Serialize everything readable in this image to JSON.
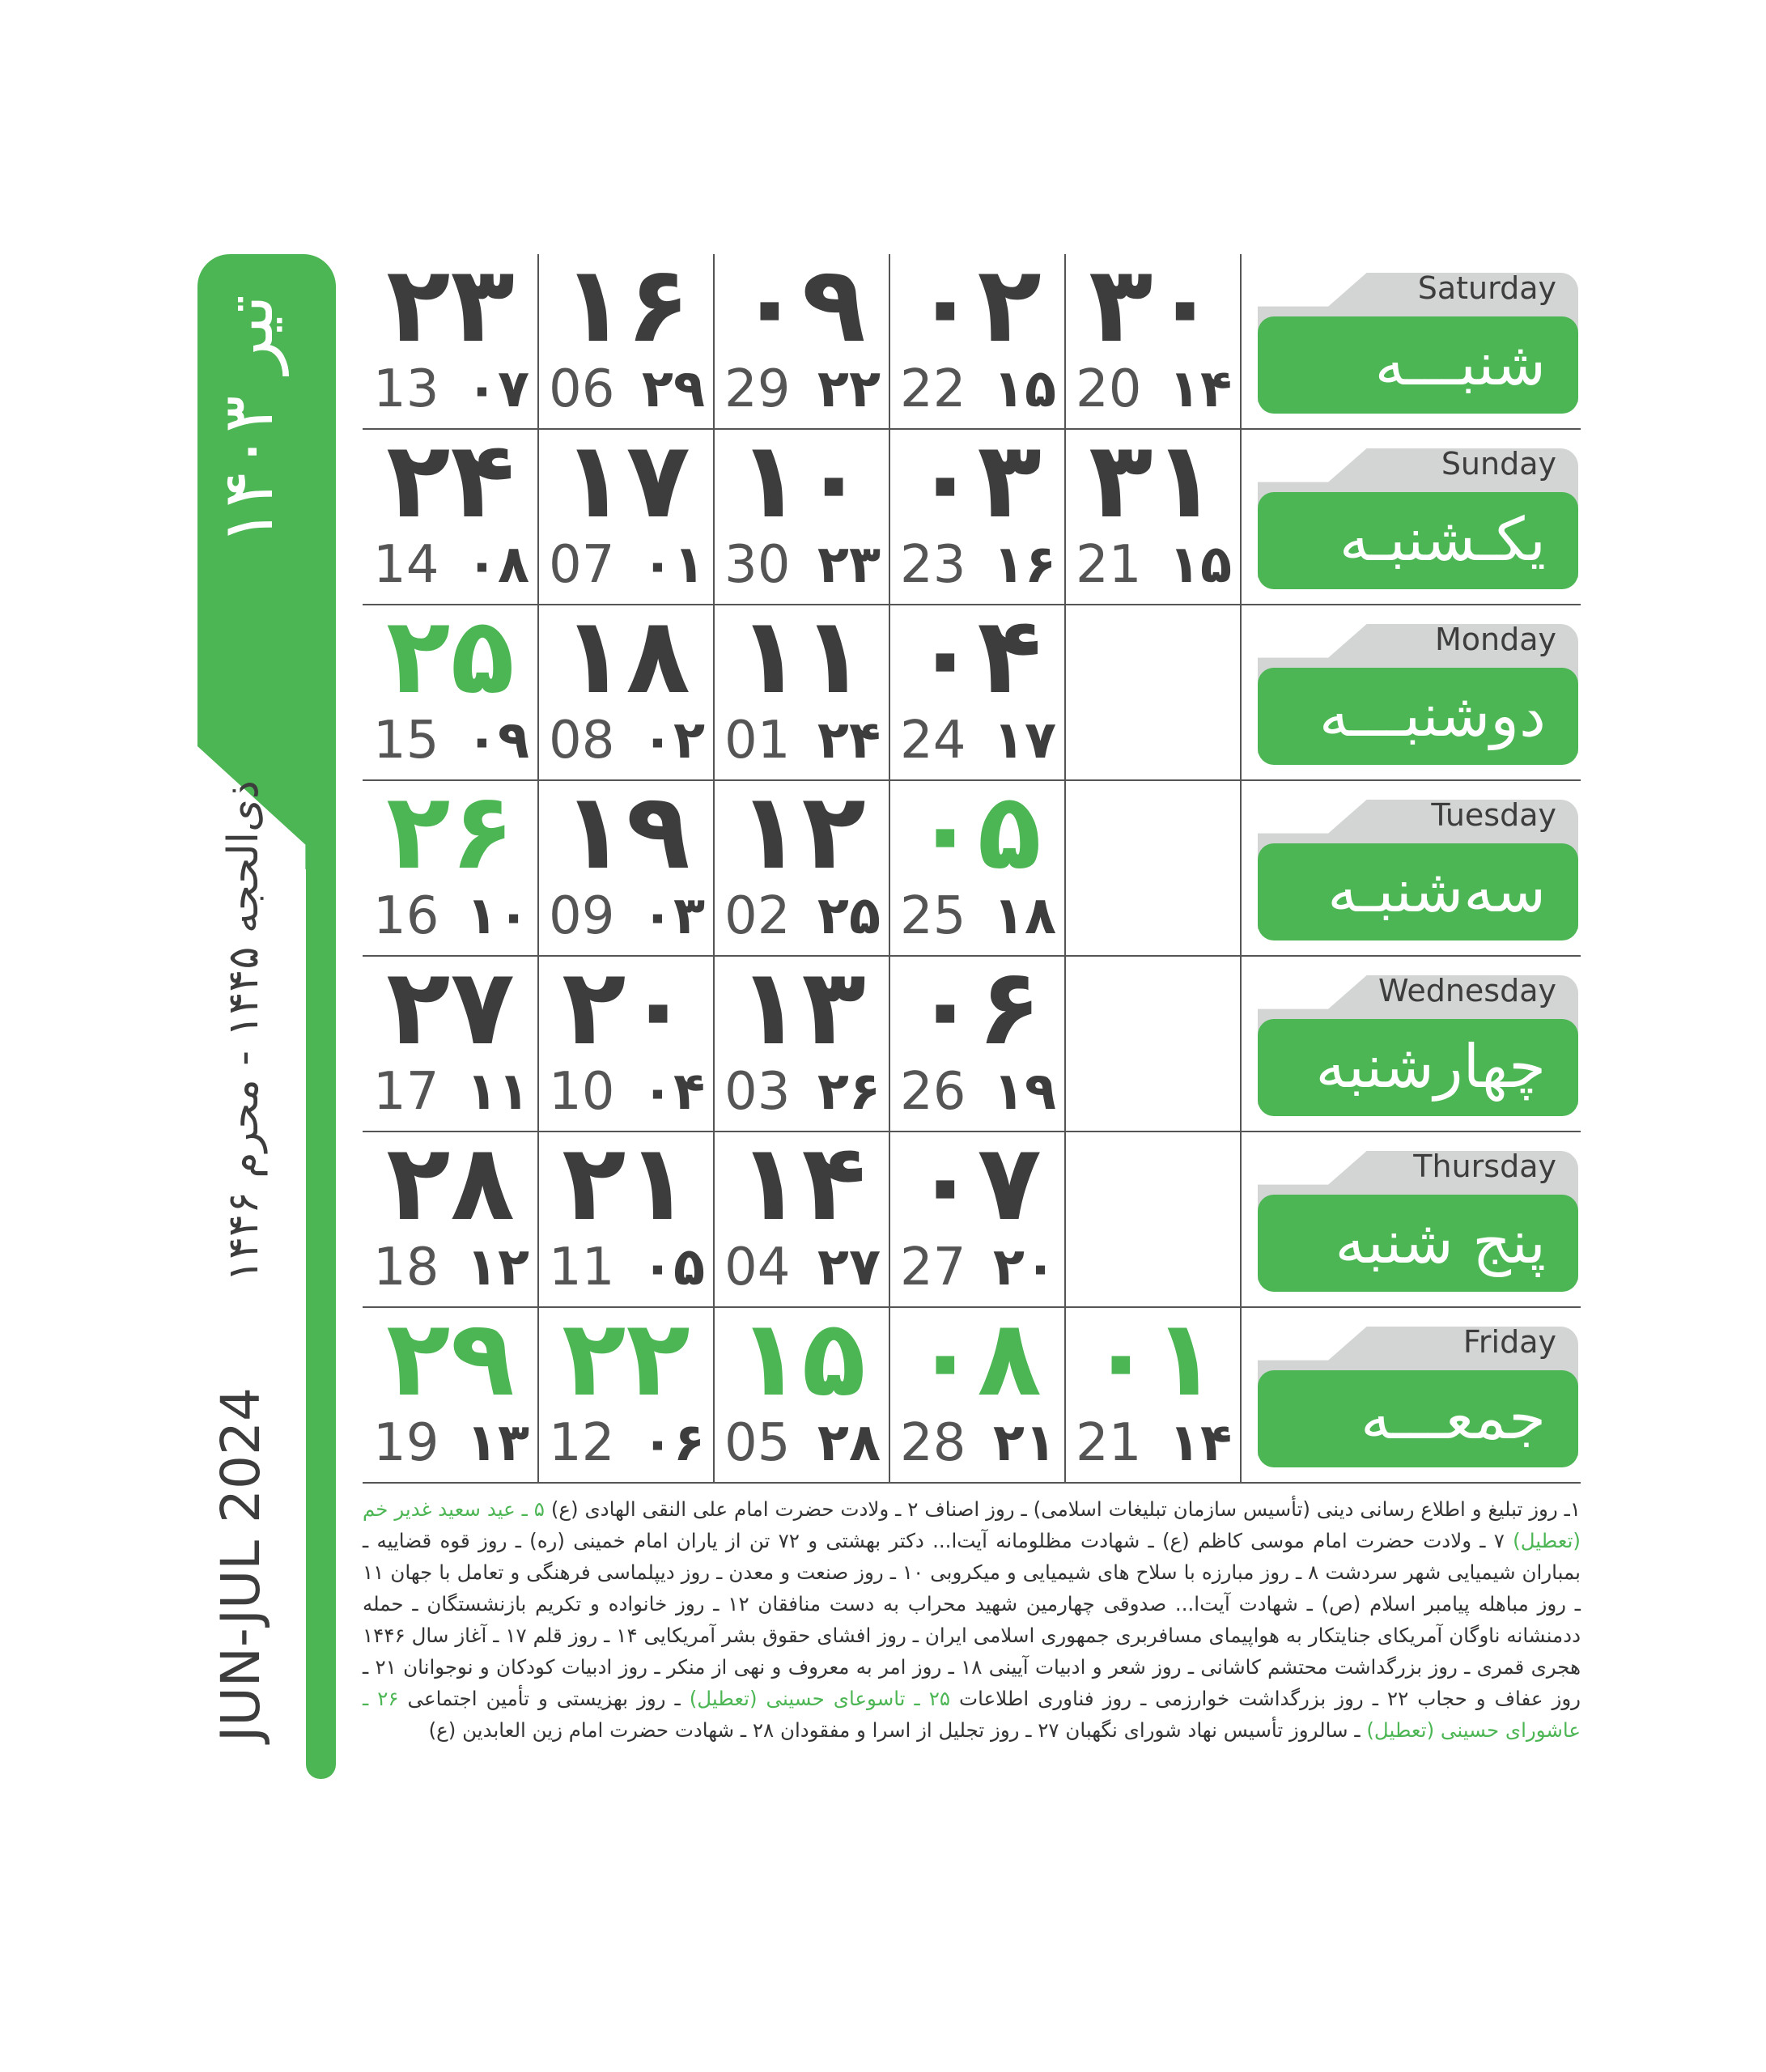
{
  "sidebar": {
    "month_title": "تیر ۱۴۰۳",
    "hijri_range": "ذی‌الحجه ۱۴۴۵ - محرم ۱۴۴۶",
    "gregorian_range": "JUN-JUL 2024"
  },
  "colors": {
    "accent": "#4cb654",
    "text": "#3d3d3d",
    "tab_grey": "#d3d4d4"
  },
  "days": [
    {
      "en": "Saturday",
      "fa": "شنبـــه"
    },
    {
      "en": "Sunday",
      "fa": "یکـشنبـه"
    },
    {
      "en": "Monday",
      "fa": "دوشنبـــه"
    },
    {
      "en": "Tuesday",
      "fa": "سه‌شنبـه"
    },
    {
      "en": "Wednesday",
      "fa": "چهارشنبه"
    },
    {
      "en": "Thursday",
      "fa": "پنج شنبه"
    },
    {
      "en": "Friday",
      "fa": "جمعـــه"
    }
  ],
  "weeks": [
    [
      {
        "shamsi": "۳۰",
        "greg": "20",
        "hijri": "۱۴",
        "holiday": false
      },
      {
        "shamsi": "۳۱",
        "greg": "21",
        "hijri": "۱۵",
        "holiday": false
      },
      null,
      null,
      null,
      null,
      {
        "shamsi": "۰۱",
        "greg": "21",
        "hijri": "۱۴",
        "holiday": true
      }
    ],
    [
      {
        "shamsi": "۰۲",
        "greg": "22",
        "hijri": "۱۵",
        "holiday": false
      },
      {
        "shamsi": "۰۳",
        "greg": "23",
        "hijri": "۱۶",
        "holiday": false
      },
      {
        "shamsi": "۰۴",
        "greg": "24",
        "hijri": "۱۷",
        "holiday": false
      },
      {
        "shamsi": "۰۵",
        "greg": "25",
        "hijri": "۱۸",
        "holiday": true
      },
      {
        "shamsi": "۰۶",
        "greg": "26",
        "hijri": "۱۹",
        "holiday": false
      },
      {
        "shamsi": "۰۷",
        "greg": "27",
        "hijri": "۲۰",
        "holiday": false
      },
      {
        "shamsi": "۰۸",
        "greg": "28",
        "hijri": "۲۱",
        "holiday": true
      }
    ],
    [
      {
        "shamsi": "۰۹",
        "greg": "29",
        "hijri": "۲۲",
        "holiday": false
      },
      {
        "shamsi": "۱۰",
        "greg": "30",
        "hijri": "۲۳",
        "holiday": false
      },
      {
        "shamsi": "۱۱",
        "greg": "01",
        "hijri": "۲۴",
        "holiday": false
      },
      {
        "shamsi": "۱۲",
        "greg": "02",
        "hijri": "۲۵",
        "holiday": false
      },
      {
        "shamsi": "۱۳",
        "greg": "03",
        "hijri": "۲۶",
        "holiday": false
      },
      {
        "shamsi": "۱۴",
        "greg": "04",
        "hijri": "۲۷",
        "holiday": false
      },
      {
        "shamsi": "۱۵",
        "greg": "05",
        "hijri": "۲۸",
        "holiday": true
      }
    ],
    [
      {
        "shamsi": "۱۶",
        "greg": "06",
        "hijri": "۲۹",
        "holiday": false
      },
      {
        "shamsi": "۱۷",
        "greg": "07",
        "hijri": "۰۱",
        "holiday": false
      },
      {
        "shamsi": "۱۸",
        "greg": "08",
        "hijri": "۰۲",
        "holiday": false
      },
      {
        "shamsi": "۱۹",
        "greg": "09",
        "hijri": "۰۳",
        "holiday": false
      },
      {
        "shamsi": "۲۰",
        "greg": "10",
        "hijri": "۰۴",
        "holiday": false
      },
      {
        "shamsi": "۲۱",
        "greg": "11",
        "hijri": "۰۵",
        "holiday": false
      },
      {
        "shamsi": "۲۲",
        "greg": "12",
        "hijri": "۰۶",
        "holiday": true
      }
    ],
    [
      {
        "shamsi": "۲۳",
        "greg": "13",
        "hijri": "۰۷",
        "holiday": false
      },
      {
        "shamsi": "۲۴",
        "greg": "14",
        "hijri": "۰۸",
        "holiday": false
      },
      {
        "shamsi": "۲۵",
        "greg": "15",
        "hijri": "۰۹",
        "holiday": true
      },
      {
        "shamsi": "۲۶",
        "greg": "16",
        "hijri": "۱۰",
        "holiday": true
      },
      {
        "shamsi": "۲۷",
        "greg": "17",
        "hijri": "۱۱",
        "holiday": false
      },
      {
        "shamsi": "۲۸",
        "greg": "18",
        "hijri": "۱۲",
        "holiday": false
      },
      {
        "shamsi": "۲۹",
        "greg": "19",
        "hijri": "۱۳",
        "holiday": true
      }
    ]
  ],
  "notes": [
    {
      "text": "۱ـ روز تبلیغ و اطلاع رسانی دینی (تأسیس سازمان تبلیغات اسلامی) ـ روز اصناف ۲ ـ ولادت حضرت امام علی النقی الهادی (ع) ",
      "highlight": false
    },
    {
      "text": "۵ ـ عید سعید غدیر خم (تعطیل)",
      "highlight": true
    },
    {
      "text": " ۷ ـ ولادت حضرت امام موسی کاظم (ع) ـ شهادت مظلومانه آیت‌ا... دکتر بهشتی و ۷۲ تن از یاران امام خمینی (ره) ـ روز قوه قضاییه ـ بمباران شیمیایی شهر سردشت ۸ ـ روز مبارزه با سلاح های شیمیایی و میکروبی ۱۰ ـ روز صنعت و معدن ـ روز دیپلماسی فرهنگی و تعامل با جهان ۱۱ ـ روز مباهله پیامبر اسلام (ص) ـ شهادت آیت‌ا... صدوقی چهارمین شهید محراب به دست منافقان ۱۲ ـ روز خانواده و تکریم بازنشستگان ـ حمله ددمنشانه ناوگان آمریکای جنایتکار به هواپیمای مسافربری جمهوری اسلامی ایران ـ روز افشای حقوق بشر آمریکایی ۱۴ ـ روز قلم ۱۷ ـ آغاز سال ۱۴۴۶ هجری قمری ـ روز بزرگداشت محتشم کاشانی ـ روز شعر و ادبیات آیینی ۱۸ ـ روز امر به معروف و نهی از منکر ـ روز ادبیات کودکان و نوجوانان ۲۱ ـ روز عفاف و حجاب ۲۲ ـ روز بزرگداشت خوارزمی ـ روز فناوری اطلاعات ",
      "highlight": false
    },
    {
      "text": "۲۵ ـ تاسوعای حسینی (تعطیل)",
      "highlight": true
    },
    {
      "text": " ـ روز بهزیستی و تأمین اجتماعی ",
      "highlight": false
    },
    {
      "text": "۲۶ ـ عاشورای حسینی (تعطیل)",
      "highlight": true
    },
    {
      "text": " ـ سالروز تأسیس نهاد شورای نگهبان ۲۷ ـ روز تجلیل از اسرا و مفقودان ۲۸ ـ شهادت حضرت امام زین العابدین (ع)",
      "highlight": false
    }
  ]
}
